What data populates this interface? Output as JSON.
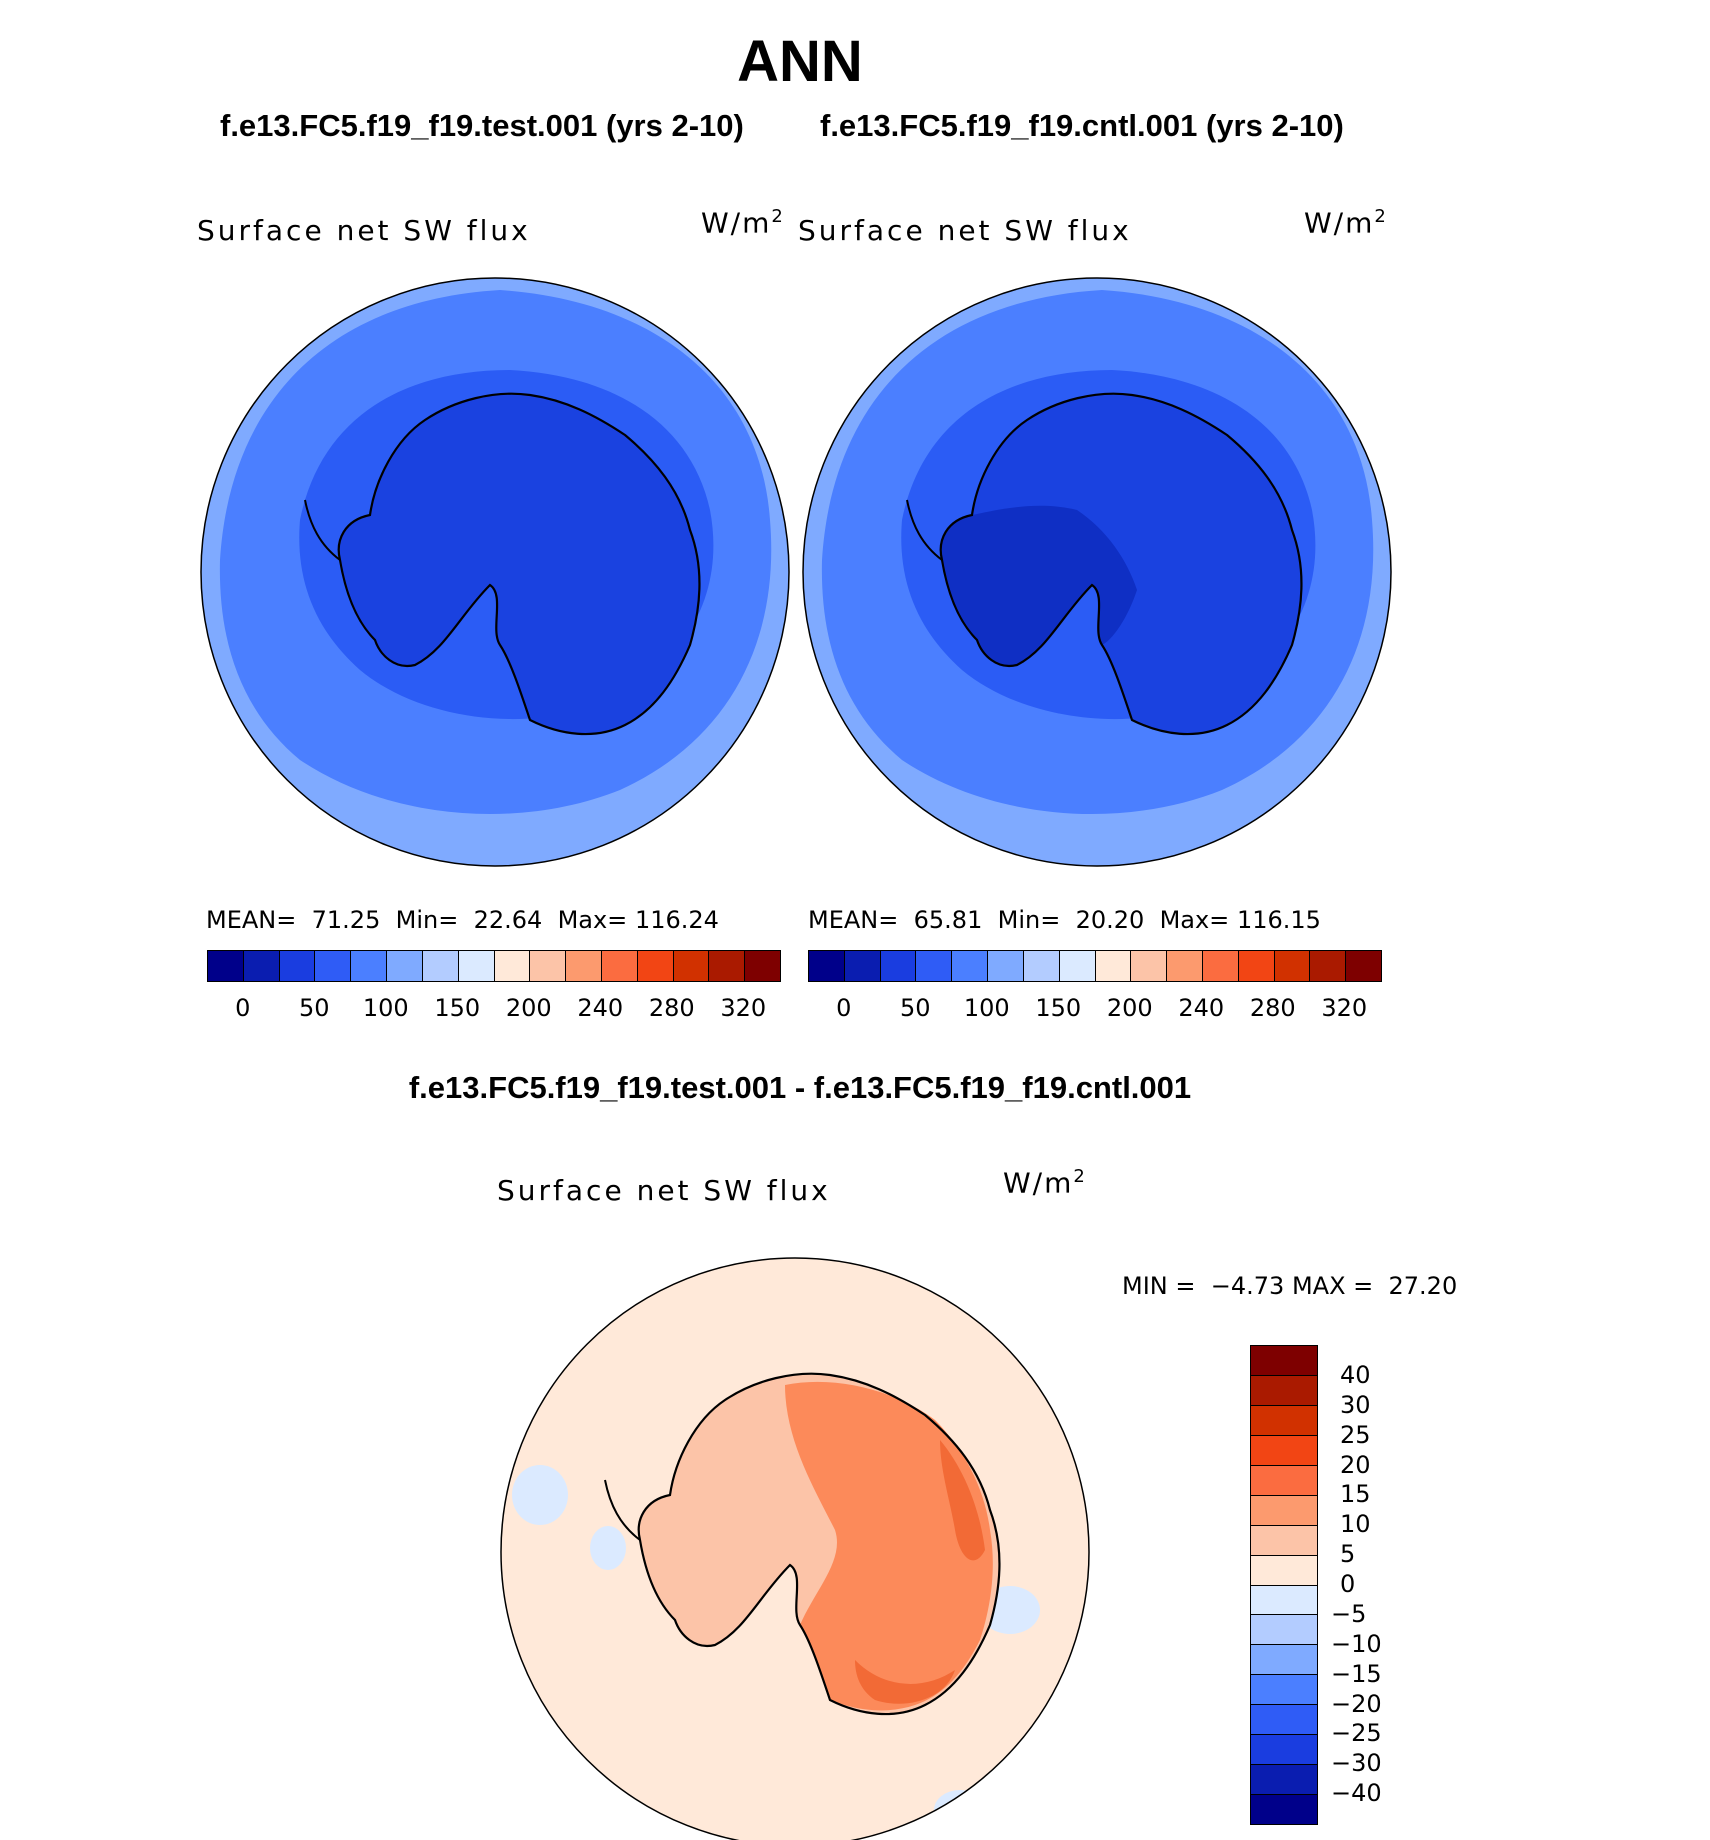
{
  "title": "ANN",
  "panels": [
    {
      "case_title": "f.e13.FC5.f19_f19.test.001 (yrs 2-10)",
      "variable": "Surface net SW flux",
      "units": "W/m",
      "units_exp": "2",
      "stats": {
        "mean_label": "MEAN=",
        "mean": "71.25",
        "min_label": "Min=",
        "min": "22.64",
        "max_label": "Max=",
        "max": "116.24"
      },
      "fills": {
        "outer": "#7faaff",
        "ring": "#4b7fff",
        "inner": "#2b5cf5",
        "land": "#1a42e0",
        "deep": "#1a42e0"
      }
    },
    {
      "case_title": "f.e13.FC5.f19_f19.cntl.001 (yrs 2-10)",
      "variable": "Surface net SW flux",
      "units": "W/m",
      "units_exp": "2",
      "stats": {
        "mean_label": "MEAN=",
        "mean": "65.81",
        "min_label": "Min=",
        "min": "20.20",
        "max_label": "Max=",
        "max": "116.15"
      },
      "fills": {
        "outer": "#7faaff",
        "ring": "#4b7fff",
        "inner": "#2b5cf5",
        "land": "#1a42e0",
        "deep": "#0f2fc4"
      }
    }
  ],
  "abs_colorbar": {
    "colors": [
      "#00008a",
      "#0a1db0",
      "#1a3de0",
      "#2f5cf6",
      "#4b7fff",
      "#7faaff",
      "#b3ccff",
      "#dbeaff",
      "#ffe9d9",
      "#fcc4a8",
      "#fc9a6e",
      "#fb6c40",
      "#f24514",
      "#d13100",
      "#aa1a00",
      "#7e0000"
    ],
    "ticks": [
      "0",
      "50",
      "100",
      "150",
      "200",
      "240",
      "280",
      "320"
    ]
  },
  "diff": {
    "title": "f.e13.FC5.f19_f19.test.001 - f.e13.FC5.f19_f19.cntl.001",
    "variable": "Surface net SW flux",
    "units": "W/m",
    "units_exp": "2",
    "min_label": "MIN =",
    "min": "−4.73",
    "max_label": "MAX =",
    "max": "27.20",
    "fills": {
      "bg": "#ffe9d9",
      "land_low": "#fcc4a8",
      "land_high": "#fc8a5a",
      "hot": "#f26a36",
      "neg": "#dbeaff"
    }
  },
  "diff_colorbar": {
    "colors": [
      "#7e0000",
      "#aa1a00",
      "#d13100",
      "#f24514",
      "#fb6c40",
      "#fc9a6e",
      "#fcc4a8",
      "#ffe9d9",
      "#dbeaff",
      "#b3ccff",
      "#7faaff",
      "#4b7fff",
      "#2f5cf6",
      "#1a3de0",
      "#0a1db0",
      "#00008a"
    ],
    "ticks": [
      "40",
      "30",
      "25",
      "20",
      "15",
      "10",
      "5",
      "0",
      "−5",
      "−10",
      "−15",
      "−20",
      "−25",
      "−30",
      "−40"
    ]
  },
  "map_region": "Antarctica (south polar stereographic)"
}
